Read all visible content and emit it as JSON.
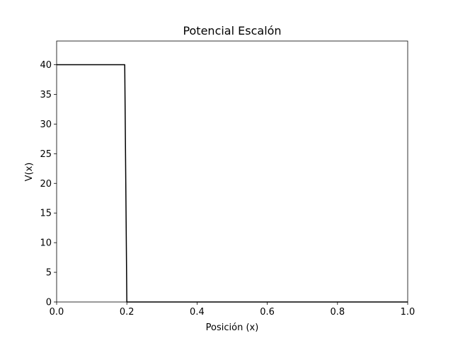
{
  "chart_data": {
    "type": "line",
    "title": "Potencial Escalón",
    "xlabel": "Posición (x)",
    "ylabel": "V(x)",
    "xlim": [
      0,
      1
    ],
    "ylim": [
      0,
      44
    ],
    "x_ticks": [
      0.0,
      0.2,
      0.4,
      0.6,
      0.8,
      1.0
    ],
    "x_tick_labels": [
      "0.0",
      "0.2",
      "0.4",
      "0.6",
      "0.8",
      "1.0"
    ],
    "y_ticks": [
      0,
      5,
      10,
      15,
      20,
      25,
      30,
      35,
      40
    ],
    "y_tick_labels": [
      "0",
      "5",
      "10",
      "15",
      "20",
      "25",
      "30",
      "35",
      "40"
    ],
    "grid": false,
    "series": [
      {
        "color": "#000000",
        "x": [
          0.0,
          0.194,
          0.2,
          1.0
        ],
        "y": [
          40,
          40,
          0,
          0
        ]
      }
    ]
  }
}
